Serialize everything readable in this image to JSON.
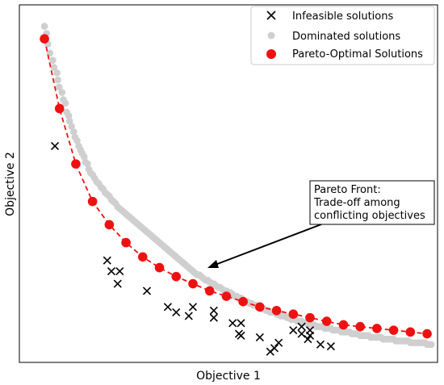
{
  "chart_data": {
    "type": "scatter",
    "xlabel": "Objective 1",
    "ylabel": "Objective 2",
    "xlim": [
      0,
      100
    ],
    "ylim": [
      0,
      100
    ],
    "x_ticks": [],
    "y_ticks": [],
    "grid": false,
    "legend_position": "top-right",
    "legend": [
      {
        "label": "Infeasible solutions",
        "marker": "x",
        "color": "#000000"
      },
      {
        "label": "Dominated solutions",
        "marker": "circle",
        "color": "#cfcfcf"
      },
      {
        "label": "Pareto-Optimal Solutions",
        "marker": "circle",
        "color": "#ee1111"
      }
    ],
    "pareto_line": {
      "style": "dashed",
      "color": "#ee1111"
    },
    "series": [
      {
        "name": "Pareto-Optimal Solutions",
        "points": [
          [
            6,
            90.5
          ],
          [
            9.6,
            71
          ],
          [
            13.5,
            55.5
          ],
          [
            17.5,
            45
          ],
          [
            21.5,
            38.5
          ],
          [
            25.5,
            33.5
          ],
          [
            29.5,
            29.5
          ],
          [
            33.5,
            26.5
          ],
          [
            37.5,
            24
          ],
          [
            41.5,
            22
          ],
          [
            45.5,
            20
          ],
          [
            49.5,
            18.5
          ],
          [
            53.5,
            17
          ],
          [
            57.5,
            15.5
          ],
          [
            61.5,
            14.5
          ],
          [
            65.5,
            13.5
          ],
          [
            69.5,
            12.5
          ],
          [
            73.5,
            11.5
          ],
          [
            77.5,
            10.5
          ],
          [
            81.5,
            10
          ],
          [
            85.5,
            9.5
          ],
          [
            89.5,
            9
          ],
          [
            93.5,
            8.5
          ],
          [
            97.5,
            8
          ]
        ]
      },
      {
        "name": "Infeasible solutions",
        "points": [
          [
            8.5,
            60.5
          ],
          [
            21,
            28.5
          ],
          [
            22,
            25.5
          ],
          [
            24,
            25.5
          ],
          [
            23.5,
            22
          ],
          [
            30.5,
            20
          ],
          [
            35.5,
            15.5
          ],
          [
            37.5,
            14
          ],
          [
            40.5,
            13
          ],
          [
            41.5,
            15.5
          ],
          [
            46.5,
            12.5
          ],
          [
            46.5,
            14.5
          ],
          [
            51,
            11
          ],
          [
            53,
            11
          ],
          [
            52.5,
            8
          ],
          [
            53,
            7.5
          ],
          [
            57.5,
            7
          ],
          [
            61,
            4
          ],
          [
            60,
            3
          ],
          [
            62,
            5.5
          ],
          [
            65.5,
            9
          ],
          [
            67.5,
            8
          ],
          [
            67.5,
            10
          ],
          [
            69,
            6.5
          ],
          [
            69.5,
            7.5
          ],
          [
            69.5,
            9
          ],
          [
            72,
            5
          ],
          [
            74.5,
            4.5
          ]
        ]
      },
      {
        "name": "Dominated solutions",
        "points": [
          [
            6,
            94
          ],
          [
            6.5,
            92
          ],
          [
            6.8,
            89
          ],
          [
            7.3,
            86.5
          ],
          [
            8,
            84.5
          ],
          [
            8.3,
            82.5
          ],
          [
            9,
            81
          ],
          [
            9.2,
            79
          ],
          [
            9.5,
            77
          ],
          [
            10.2,
            75.5
          ],
          [
            10.5,
            73.5
          ],
          [
            11,
            72.5
          ],
          [
            11.3,
            70
          ],
          [
            11.8,
            69
          ],
          [
            12,
            67.5
          ],
          [
            12.5,
            66
          ],
          [
            13,
            64.5
          ],
          [
            13.3,
            63
          ],
          [
            13.8,
            62
          ],
          [
            14.2,
            60.5
          ],
          [
            14.6,
            59.5
          ],
          [
            15,
            58.5
          ],
          [
            15.5,
            57.5
          ],
          [
            15.8,
            56
          ],
          [
            16.3,
            55.5
          ],
          [
            16.6,
            54
          ],
          [
            17,
            53
          ],
          [
            17.5,
            52.5
          ],
          [
            18,
            51.5
          ],
          [
            18.5,
            50.5
          ],
          [
            19,
            50
          ],
          [
            19.5,
            49
          ],
          [
            20,
            48.5
          ],
          [
            20.5,
            47.5
          ],
          [
            21,
            47
          ],
          [
            21.5,
            46.5
          ],
          [
            22,
            45.5
          ],
          [
            22.5,
            45
          ],
          [
            23,
            44.5
          ],
          [
            23.5,
            43.5
          ],
          [
            24,
            43
          ],
          [
            24.5,
            42.5
          ],
          [
            25,
            42
          ],
          [
            25.5,
            41.5
          ],
          [
            26,
            41
          ],
          [
            26.5,
            40.5
          ],
          [
            27,
            40
          ],
          [
            27.5,
            39.5
          ],
          [
            28,
            39
          ],
          [
            28.5,
            38.5
          ],
          [
            29,
            38
          ],
          [
            29.5,
            37.5
          ],
          [
            30,
            37
          ],
          [
            30.5,
            36.5
          ],
          [
            31,
            36
          ],
          [
            31.5,
            35.5
          ],
          [
            32,
            35
          ],
          [
            32.5,
            34.5
          ],
          [
            33,
            34
          ],
          [
            33.5,
            33.5
          ],
          [
            34,
            33
          ],
          [
            34.5,
            32.5
          ],
          [
            35,
            32
          ],
          [
            35.5,
            31.5
          ],
          [
            36,
            31
          ],
          [
            36.5,
            30.5
          ],
          [
            37,
            30
          ],
          [
            37.5,
            29.5
          ],
          [
            38,
            29
          ],
          [
            38.5,
            28.5
          ],
          [
            39,
            28
          ],
          [
            39.5,
            27.5
          ],
          [
            40,
            27
          ],
          [
            40.5,
            26.5
          ],
          [
            41,
            26
          ],
          [
            41.5,
            25.5
          ],
          [
            42,
            25
          ],
          [
            42.5,
            24.5
          ],
          [
            43,
            24.5
          ],
          [
            43.5,
            24
          ],
          [
            44,
            23.5
          ],
          [
            44.5,
            23
          ],
          [
            45,
            23
          ],
          [
            45.5,
            22.5
          ],
          [
            46,
            22
          ],
          [
            46.5,
            22
          ],
          [
            47,
            21.5
          ],
          [
            47.5,
            21
          ],
          [
            48,
            21
          ],
          [
            48.5,
            20.5
          ],
          [
            49,
            20
          ],
          [
            49.5,
            20
          ],
          [
            50,
            19.5
          ],
          [
            50.5,
            19.5
          ],
          [
            51,
            19
          ],
          [
            51.5,
            18.5
          ],
          [
            52,
            18.5
          ],
          [
            52.5,
            18
          ],
          [
            53,
            18
          ],
          [
            53.5,
            17.5
          ],
          [
            54,
            17
          ],
          [
            54.5,
            17
          ],
          [
            55,
            16.5
          ],
          [
            55.5,
            16.5
          ],
          [
            56,
            16
          ],
          [
            56.5,
            16
          ],
          [
            57,
            15.5
          ],
          [
            57.5,
            15.5
          ],
          [
            58,
            15
          ],
          [
            58.5,
            15
          ],
          [
            59,
            14.5
          ],
          [
            59.5,
            14.5
          ],
          [
            60,
            14
          ],
          [
            60.5,
            14
          ],
          [
            61,
            14
          ],
          [
            61.5,
            13.5
          ],
          [
            62,
            13.5
          ],
          [
            62.5,
            13
          ],
          [
            63,
            13
          ],
          [
            63.5,
            13
          ],
          [
            64,
            12.5
          ],
          [
            64.5,
            12.5
          ],
          [
            65,
            12
          ],
          [
            65.5,
            12
          ],
          [
            66,
            12
          ],
          [
            66.5,
            11.5
          ],
          [
            67,
            11.5
          ],
          [
            67.5,
            11.5
          ],
          [
            68,
            11
          ],
          [
            68.5,
            11
          ],
          [
            69,
            11
          ],
          [
            69.5,
            10.5
          ],
          [
            70,
            10.5
          ],
          [
            70.5,
            10.5
          ],
          [
            71,
            10
          ],
          [
            71.5,
            10
          ],
          [
            72,
            10
          ],
          [
            72.5,
            10
          ],
          [
            73,
            9.5
          ],
          [
            73.5,
            9.5
          ],
          [
            74,
            9.5
          ],
          [
            74.5,
            9.5
          ],
          [
            75,
            9
          ],
          [
            75.5,
            9
          ],
          [
            76,
            9
          ],
          [
            76.5,
            9
          ],
          [
            77,
            8.5
          ],
          [
            77.5,
            8.5
          ],
          [
            78,
            8.5
          ],
          [
            78.5,
            8.5
          ],
          [
            79,
            8.5
          ],
          [
            79.5,
            8
          ],
          [
            80,
            8
          ],
          [
            80.5,
            8
          ],
          [
            81,
            8
          ],
          [
            81.5,
            7.5
          ],
          [
            82,
            7.5
          ],
          [
            82.5,
            7.5
          ],
          [
            83,
            7.5
          ],
          [
            83.5,
            7.5
          ],
          [
            84,
            7
          ],
          [
            84.5,
            7
          ],
          [
            85,
            7
          ],
          [
            85.5,
            7
          ],
          [
            86,
            7
          ],
          [
            86.5,
            7
          ],
          [
            87,
            6.5
          ],
          [
            87.5,
            6.5
          ],
          [
            88,
            6.5
          ],
          [
            88.5,
            6.5
          ],
          [
            89,
            6.5
          ],
          [
            89.5,
            6.5
          ],
          [
            90,
            6
          ],
          [
            90.5,
            6
          ],
          [
            91,
            6
          ],
          [
            91.5,
            6
          ],
          [
            92,
            6
          ],
          [
            92.5,
            6
          ],
          [
            93,
            6
          ],
          [
            93.5,
            5.5
          ],
          [
            94,
            5.5
          ],
          [
            94.5,
            5.5
          ],
          [
            95,
            5.5
          ],
          [
            95.5,
            5.5
          ],
          [
            96,
            5.5
          ],
          [
            96.5,
            5.5
          ],
          [
            97,
            5.5
          ],
          [
            97.5,
            5
          ],
          [
            98,
            5
          ],
          [
            98.5,
            5
          ]
        ]
      }
    ],
    "annotations": [
      {
        "text_lines": [
          "Pareto Front:",
          "Trade-off among",
          "conflicting objectives"
        ],
        "arrow_to": [
          49.5,
          18.5
        ]
      }
    ]
  }
}
